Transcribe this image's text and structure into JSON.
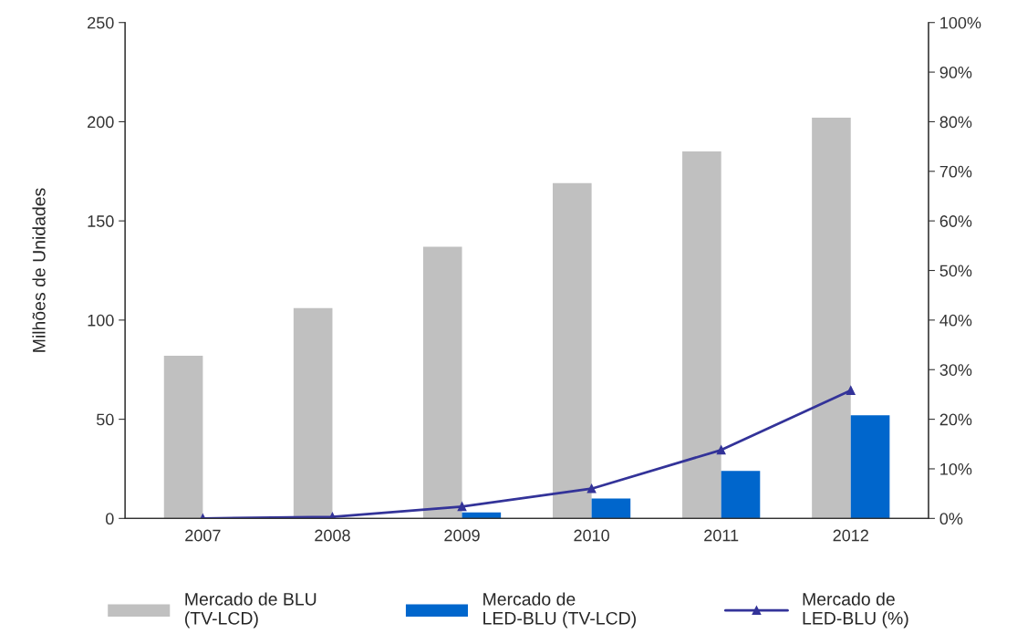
{
  "chart_data": {
    "type": "bar",
    "categories": [
      "2007",
      "2008",
      "2009",
      "2010",
      "2011",
      "2012"
    ],
    "ylabel": "Milhões de Unidades",
    "series": [
      {
        "name": "Mercado de BLU\n(TV-LCD)",
        "color": "#c0c0c0",
        "values": [
          82,
          106,
          137,
          169,
          185,
          202
        ]
      },
      {
        "name": "Mercado de\nLED-BLU (TV-LCD)",
        "color": "#0066cc",
        "values": [
          0,
          0,
          3,
          10,
          24,
          52
        ]
      },
      {
        "name": "Mercado de\nLED-BLU (%)",
        "color": "#333399",
        "type": "line",
        "axis": "y2",
        "marker": "triangle",
        "values": [
          0,
          0.3,
          2.4,
          6,
          13.8,
          25.8
        ]
      }
    ],
    "ylim": [
      0,
      250
    ],
    "yticks": [
      0,
      50,
      100,
      150,
      200,
      250
    ],
    "y2lim": [
      0,
      100
    ],
    "y2ticks": [
      {
        "value": 0,
        "label": "0%"
      },
      {
        "value": 10,
        "label": "10%"
      },
      {
        "value": 20,
        "label": "20%"
      },
      {
        "value": 30,
        "label": "30%"
      },
      {
        "value": 40,
        "label": "40%"
      },
      {
        "value": 50,
        "label": "50%"
      },
      {
        "value": 60,
        "label": "60%"
      },
      {
        "value": 70,
        "label": "70%"
      },
      {
        "value": 80,
        "label": "80%"
      },
      {
        "value": 90,
        "label": "90%"
      },
      {
        "value": 100,
        "label": "100%"
      }
    ],
    "grid": false,
    "legend": "bottom"
  }
}
